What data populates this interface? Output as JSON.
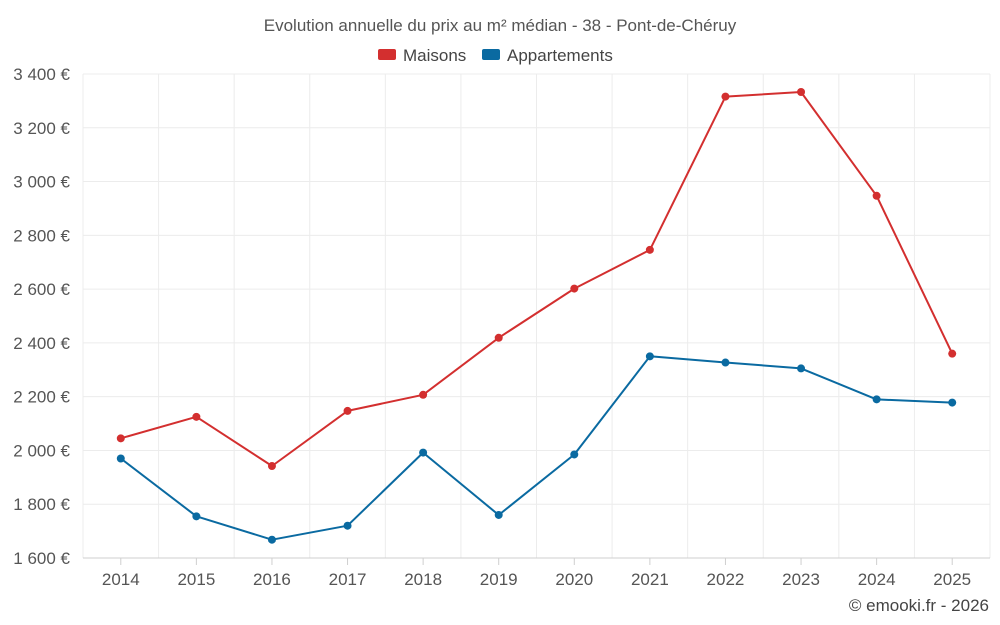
{
  "chart_data": {
    "type": "line",
    "title": "Evolution annuelle du prix au m² médian - 38 - Pont-de-Chéruy",
    "categories": [
      "2014",
      "2015",
      "2016",
      "2017",
      "2018",
      "2019",
      "2020",
      "2021",
      "2022",
      "2023",
      "2024",
      "2025"
    ],
    "series": [
      {
        "name": "Maisons",
        "color": "#d32f2f",
        "values": [
          2045,
          2125,
          1942,
          2147,
          2207,
          2419,
          2602,
          2746,
          3316,
          3333,
          2947,
          2360
        ]
      },
      {
        "name": "Appartements",
        "color": "#0a6aa1",
        "values": [
          1970,
          1755,
          1668,
          1720,
          1992,
          1760,
          1985,
          2350,
          2327,
          2305,
          2190,
          2178
        ]
      }
    ],
    "ylim": [
      1600,
      3400
    ],
    "yticks": [
      1600,
      1800,
      2000,
      2200,
      2400,
      2600,
      2800,
      3000,
      3200,
      3400
    ],
    "ytick_labels": [
      "1 600 €",
      "1 800 €",
      "2 000 €",
      "2 200 €",
      "2 400 €",
      "2 600 €",
      "2 800 €",
      "3 000 €",
      "3 200 €",
      "3 400 €"
    ],
    "xlabel": "",
    "ylabel": "",
    "grid": true,
    "legend_position": "top-center",
    "credit": "© emooki.fr - 2026"
  }
}
